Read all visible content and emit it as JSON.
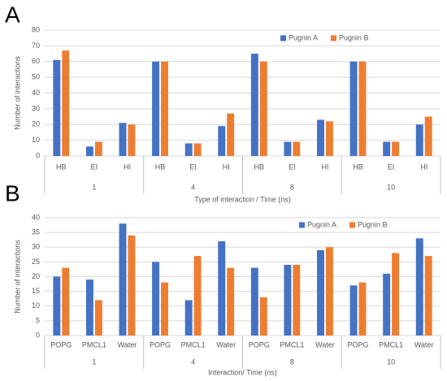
{
  "chart_data": [
    {
      "type": "bar",
      "panel": "A",
      "y_label": "Number of interactions",
      "x_label": "Type of interaction / Time (ns)",
      "categories": [
        "HB",
        "EI",
        "HI",
        "HB",
        "EI",
        "HI",
        "HB",
        "EI",
        "HI",
        "HB",
        "EI",
        "HI"
      ],
      "groups": [
        "1",
        "4",
        "8",
        "10"
      ],
      "series": [
        {
          "name": "Pugnin A",
          "color": "#4472c4",
          "values": [
            61,
            6,
            21,
            60,
            8,
            19,
            65,
            9,
            23,
            60,
            9,
            20
          ]
        },
        {
          "name": "Pugnin B",
          "color": "#ed7d31",
          "values": [
            67,
            9,
            20,
            60,
            8,
            27,
            60,
            9,
            22,
            60,
            9,
            25
          ]
        }
      ],
      "ylim": [
        0,
        80
      ],
      "yticks": [
        0,
        10,
        20,
        30,
        40,
        50,
        60,
        70,
        80
      ],
      "grid": true,
      "legend": "top-right"
    },
    {
      "type": "bar",
      "panel": "B",
      "y_label": "Number of interactions",
      "x_label": "Interaction/ Time (ns)",
      "categories": [
        "POPG",
        "PMCL1",
        "Water",
        "POPG",
        "PMCL1",
        "Water",
        "POPG",
        "PMCL1",
        "Water",
        "POPG",
        "PMCL1",
        "Water"
      ],
      "groups": [
        "1",
        "4",
        "8",
        "10"
      ],
      "series": [
        {
          "name": "Pugnin A",
          "color": "#4472c4",
          "values": [
            20,
            19,
            38,
            25,
            12,
            32,
            23,
            24,
            29,
            17,
            21,
            33
          ]
        },
        {
          "name": "Pugnin B",
          "color": "#ed7d31",
          "values": [
            23,
            12,
            34,
            18,
            27,
            23,
            13,
            24,
            30,
            18,
            28,
            27
          ]
        }
      ],
      "ylim": [
        0,
        40
      ],
      "yticks": [
        0,
        5,
        10,
        15,
        20,
        25,
        30,
        35,
        40
      ],
      "grid": true,
      "legend": "top-right"
    }
  ]
}
